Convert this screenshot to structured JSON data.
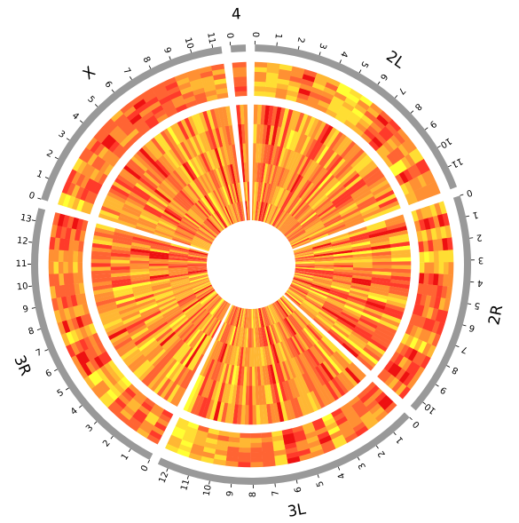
{
  "chart_data": {
    "type": "heatmap",
    "layout": "circular",
    "title": "",
    "genome_unit": "Mb",
    "palette": [
      "#ffff33",
      "#ffde33",
      "#ffb733",
      "#ff9033",
      "#ff6433",
      "#ff3a2a",
      "#ee1111"
    ],
    "ideogram_color": "#999999",
    "gap_degrees": 2.4,
    "chromosomes": [
      {
        "name": "2L",
        "length": 12.0,
        "ticks": [
          0,
          1,
          2,
          3,
          4,
          5,
          6,
          7,
          8,
          9,
          10,
          11
        ]
      },
      {
        "name": "2R",
        "length": 10.5,
        "ticks": [
          0,
          1,
          2,
          3,
          4,
          5,
          6,
          7,
          8,
          9,
          10
        ]
      },
      {
        "name": "3L",
        "length": 12.5,
        "ticks": [
          0,
          1,
          2,
          3,
          4,
          5,
          6,
          7,
          8,
          9,
          10,
          11,
          12
        ]
      },
      {
        "name": "3R",
        "length": 13.6,
        "ticks": [
          0,
          1,
          2,
          3,
          4,
          5,
          6,
          7,
          8,
          9,
          10,
          11,
          12,
          13
        ]
      },
      {
        "name": "X",
        "length": 11.4,
        "ticks": [
          0,
          1,
          2,
          3,
          4,
          5,
          6,
          7,
          8,
          9,
          10,
          11
        ]
      },
      {
        "name": "4",
        "length": 0.7,
        "ticks": [
          0
        ]
      }
    ],
    "tracks": [
      {
        "bins_per_mb": 1.6,
        "rows": 7,
        "seed": 11,
        "value_range": [
          0,
          1
        ]
      },
      {
        "bins_per_mb": 4.0,
        "rows": 6,
        "seed": 29,
        "value_range": [
          0,
          1
        ]
      }
    ]
  }
}
